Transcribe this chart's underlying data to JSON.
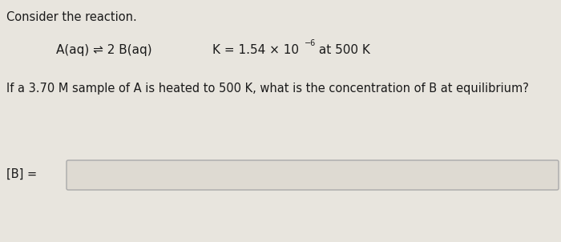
{
  "bg_color": "#e8e5de",
  "content_bg": "#e8e5de",
  "title": "Consider the reaction.",
  "reaction_part1": "A(aq) ",
  "reaction_arrows": "⇌",
  "reaction_part2": " 2 B(aq)",
  "K_text": "K = 1.54 × 10",
  "K_exp": "−6",
  "K_suffix": " at 500 K",
  "question": "If a 3.70 M sample of A is heated to 500 K, what is the concentration of B at equilibrium?",
  "answer_label": "[B] =",
  "title_fontsize": 10.5,
  "reaction_fontsize": 11,
  "question_fontsize": 10.5,
  "label_fontsize": 10.5,
  "text_color": "#1a1a1a",
  "box_edge_color": "#aaaaaa",
  "box_face_color": "#dedad2"
}
